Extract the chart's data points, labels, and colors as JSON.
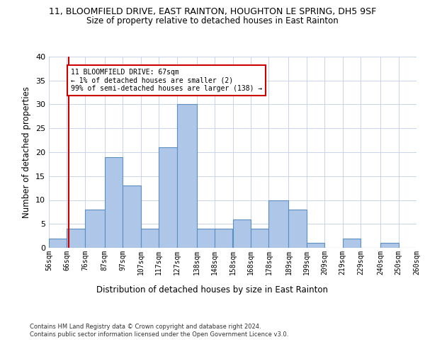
{
  "title1": "11, BLOOMFIELD DRIVE, EAST RAINTON, HOUGHTON LE SPRING, DH5 9SF",
  "title2": "Size of property relative to detached houses in East Rainton",
  "xlabel": "Distribution of detached houses by size in East Rainton",
  "ylabel": "Number of detached properties",
  "bin_labels": [
    "56sqm",
    "66sqm",
    "76sqm",
    "87sqm",
    "97sqm",
    "107sqm",
    "117sqm",
    "127sqm",
    "138sqm",
    "148sqm",
    "158sqm",
    "168sqm",
    "178sqm",
    "189sqm",
    "199sqm",
    "209sqm",
    "219sqm",
    "229sqm",
    "240sqm",
    "250sqm",
    "260sqm"
  ],
  "bar_values": [
    2,
    4,
    8,
    19,
    13,
    4,
    21,
    30,
    4,
    4,
    6,
    4,
    10,
    8,
    1,
    0,
    2,
    0,
    1,
    0
  ],
  "bar_color": "#aec6e8",
  "bar_edge_color": "#5a8fc2",
  "ylim": [
    0,
    40
  ],
  "yticks": [
    0,
    5,
    10,
    15,
    20,
    25,
    30,
    35,
    40
  ],
  "property_line_x": 67,
  "property_line_color": "#cc0000",
  "annotation_text": "11 BLOOMFIELD DRIVE: 67sqm\n← 1% of detached houses are smaller (2)\n99% of semi-detached houses are larger (138) →",
  "annotation_box_color": "#ffffff",
  "annotation_box_edge": "#cc0000",
  "footer_text": "Contains HM Land Registry data © Crown copyright and database right 2024.\nContains public sector information licensed under the Open Government Licence v3.0.",
  "background_color": "#ffffff",
  "grid_color": "#c8d4e8",
  "bin_edges": [
    56,
    66,
    76,
    87,
    97,
    107,
    117,
    127,
    138,
    148,
    158,
    168,
    178,
    189,
    199,
    209,
    219,
    229,
    240,
    250,
    260
  ]
}
